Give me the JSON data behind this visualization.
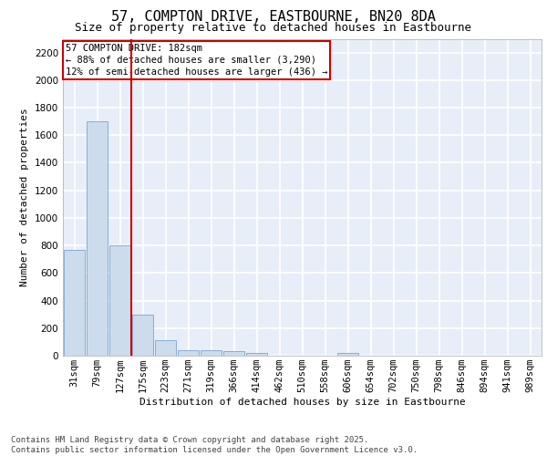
{
  "title_line1": "57, COMPTON DRIVE, EASTBOURNE, BN20 8DA",
  "title_line2": "Size of property relative to detached houses in Eastbourne",
  "xlabel": "Distribution of detached houses by size in Eastbourne",
  "ylabel": "Number of detached properties",
  "categories": [
    "31sqm",
    "79sqm",
    "127sqm",
    "175sqm",
    "223sqm",
    "271sqm",
    "319sqm",
    "366sqm",
    "414sqm",
    "462sqm",
    "510sqm",
    "558sqm",
    "606sqm",
    "654sqm",
    "702sqm",
    "750sqm",
    "798sqm",
    "846sqm",
    "894sqm",
    "941sqm",
    "989sqm"
  ],
  "values": [
    770,
    1700,
    800,
    300,
    110,
    42,
    38,
    30,
    20,
    0,
    0,
    0,
    20,
    0,
    0,
    0,
    0,
    0,
    0,
    0,
    0
  ],
  "bar_color": "#ccdcec",
  "bar_edge_color": "#6699cc",
  "vline_color": "#cc0000",
  "vline_x_index": 3,
  "annotation_text": "57 COMPTON DRIVE: 182sqm\n← 88% of detached houses are smaller (3,290)\n12% of semi-detached houses are larger (436) →",
  "annotation_box_facecolor": "#ffffff",
  "annotation_box_edgecolor": "#cc0000",
  "ylim": [
    0,
    2300
  ],
  "yticks": [
    0,
    200,
    400,
    600,
    800,
    1000,
    1200,
    1400,
    1600,
    1800,
    2000,
    2200
  ],
  "background_color": "#e8eef8",
  "grid_color": "#ffffff",
  "footnote": "Contains HM Land Registry data © Crown copyright and database right 2025.\nContains public sector information licensed under the Open Government Licence v3.0.",
  "title_fontsize": 11,
  "subtitle_fontsize": 9,
  "axis_label_fontsize": 8,
  "tick_fontsize": 7.5,
  "annotation_fontsize": 7.5,
  "footnote_fontsize": 6.5
}
